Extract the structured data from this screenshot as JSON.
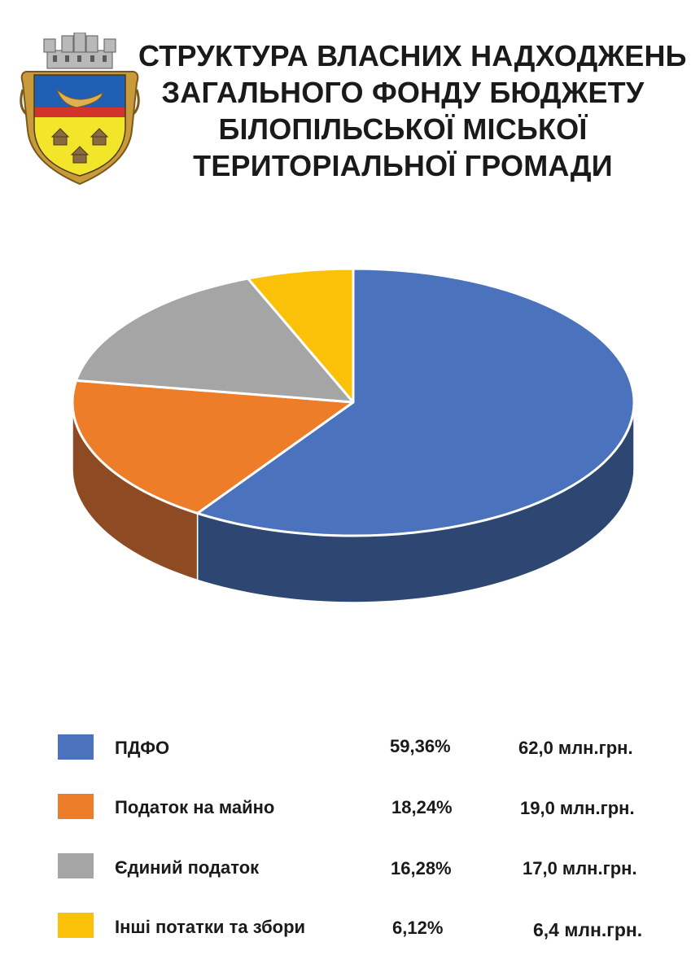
{
  "title_lines": [
    "СТРУКТУРА ВЛАСНИХ НАДХОДЖЕНЬ",
    "ЗАГАЛЬНОГО ФОНДУ БЮДЖЕТУ",
    "БІЛОПІЛЬСЬКОЇ МІСЬКОЇ",
    "ТЕРИТОРІАЛЬНОЇ ГРОМАДИ"
  ],
  "logo": {
    "name": "coat-of-arms-icon"
  },
  "chart_data": {
    "type": "pie",
    "style": "3d",
    "legend_position": "bottom",
    "slices": [
      {
        "label": "ПДФО",
        "percent": 59.36,
        "percent_text": "59,36%",
        "amount_text": "62,0 млн.грн.",
        "color": "#4a72bd",
        "side_color": "#2e4772"
      },
      {
        "label": "Податок на майно",
        "percent": 18.24,
        "percent_text": "18,24%",
        "amount_text": "19,0 млн.грн.",
        "color": "#ee7d2a",
        "side_color": "#8e4a22"
      },
      {
        "label": "Єдиний податок",
        "percent": 16.28,
        "percent_text": "16,28%",
        "amount_text": "17,0 млн.грн.",
        "color": "#a5a5a5",
        "side_color": "#6f6f6f"
      },
      {
        "label": "Інші потатки та збори",
        "percent": 6.12,
        "percent_text": "6,12%",
        "amount_text": "6,4 млн.грн.",
        "color": "#fbc108",
        "side_color": "#b08a10"
      }
    ]
  }
}
